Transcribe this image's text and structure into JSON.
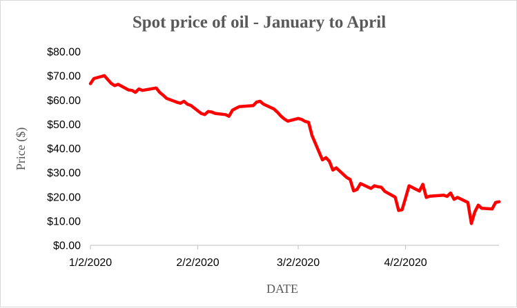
{
  "chart_data": {
    "type": "line",
    "title": "Spot price of oil - January to April",
    "xlabel": "DATE",
    "ylabel": "Price ($)",
    "x_range": [
      "2020-01-02",
      "2020-04-29"
    ],
    "xticks": [
      "2020-01-02",
      "2020-02-02",
      "2020-03-02",
      "2020-04-02"
    ],
    "xtick_labels": [
      "1/2/2020",
      "2/2/2020",
      "3/2/2020",
      "4/2/2020"
    ],
    "ylim": [
      0,
      80
    ],
    "yticks": [
      0,
      10,
      20,
      30,
      40,
      50,
      60,
      70,
      80
    ],
    "ytick_labels": [
      "$0.00",
      "$10.00",
      "$20.00",
      "$30.00",
      "$40.00",
      "$50.00",
      "$60.00",
      "$70.00",
      "$80.00"
    ],
    "grid": false,
    "legend": "none",
    "series": [
      {
        "color": "#ff0000",
        "x": [
          "2020-01-02",
          "2020-01-03",
          "2020-01-06",
          "2020-01-07",
          "2020-01-08",
          "2020-01-09",
          "2020-01-10",
          "2020-01-13",
          "2020-01-14",
          "2020-01-15",
          "2020-01-16",
          "2020-01-17",
          "2020-01-21",
          "2020-01-22",
          "2020-01-23",
          "2020-01-24",
          "2020-01-27",
          "2020-01-28",
          "2020-01-29",
          "2020-01-30",
          "2020-01-31",
          "2020-02-03",
          "2020-02-04",
          "2020-02-05",
          "2020-02-06",
          "2020-02-07",
          "2020-02-10",
          "2020-02-11",
          "2020-02-12",
          "2020-02-13",
          "2020-02-14",
          "2020-02-18",
          "2020-02-19",
          "2020-02-20",
          "2020-02-21",
          "2020-02-24",
          "2020-02-25",
          "2020-02-26",
          "2020-02-27",
          "2020-02-28",
          "2020-03-02",
          "2020-03-03",
          "2020-03-04",
          "2020-03-05",
          "2020-03-06",
          "2020-03-09",
          "2020-03-10",
          "2020-03-11",
          "2020-03-12",
          "2020-03-13",
          "2020-03-16",
          "2020-03-17",
          "2020-03-18",
          "2020-03-19",
          "2020-03-20",
          "2020-03-23",
          "2020-03-24",
          "2020-03-25",
          "2020-03-26",
          "2020-03-27",
          "2020-03-30",
          "2020-03-31",
          "2020-04-01",
          "2020-04-02",
          "2020-04-03",
          "2020-04-06",
          "2020-04-07",
          "2020-04-08",
          "2020-04-09",
          "2020-04-13",
          "2020-04-14",
          "2020-04-15",
          "2020-04-16",
          "2020-04-17",
          "2020-04-20",
          "2020-04-21",
          "2020-04-22",
          "2020-04-23",
          "2020-04-24",
          "2020-04-27",
          "2020-04-28",
          "2020-04-29"
        ],
        "values": [
          66.8,
          68.9,
          70.1,
          68.5,
          66.9,
          66.0,
          66.5,
          64.2,
          64.0,
          63.2,
          64.6,
          64.0,
          65.0,
          63.2,
          62.0,
          60.7,
          59.1,
          58.7,
          59.5,
          58.3,
          57.8,
          54.5,
          54.0,
          55.3,
          55.1,
          54.5,
          54.0,
          53.3,
          55.8,
          56.6,
          57.3,
          57.7,
          59.2,
          59.5,
          58.3,
          56.3,
          55.0,
          53.4,
          52.2,
          51.3,
          52.4,
          52.0,
          51.2,
          50.8,
          45.3,
          35.3,
          36.2,
          34.7,
          31.1,
          32.0,
          28.0,
          27.2,
          22.5,
          23.1,
          25.5,
          23.5,
          24.6,
          24.2,
          24.0,
          22.3,
          19.9,
          14.4,
          14.7,
          19.5,
          24.6,
          22.4,
          25.2,
          19.8,
          20.3,
          20.7,
          20.2,
          21.6,
          19.0,
          19.8,
          17.7,
          9.0,
          13.8,
          16.6,
          15.3,
          15.0,
          17.7,
          18.0
        ]
      }
    ]
  }
}
